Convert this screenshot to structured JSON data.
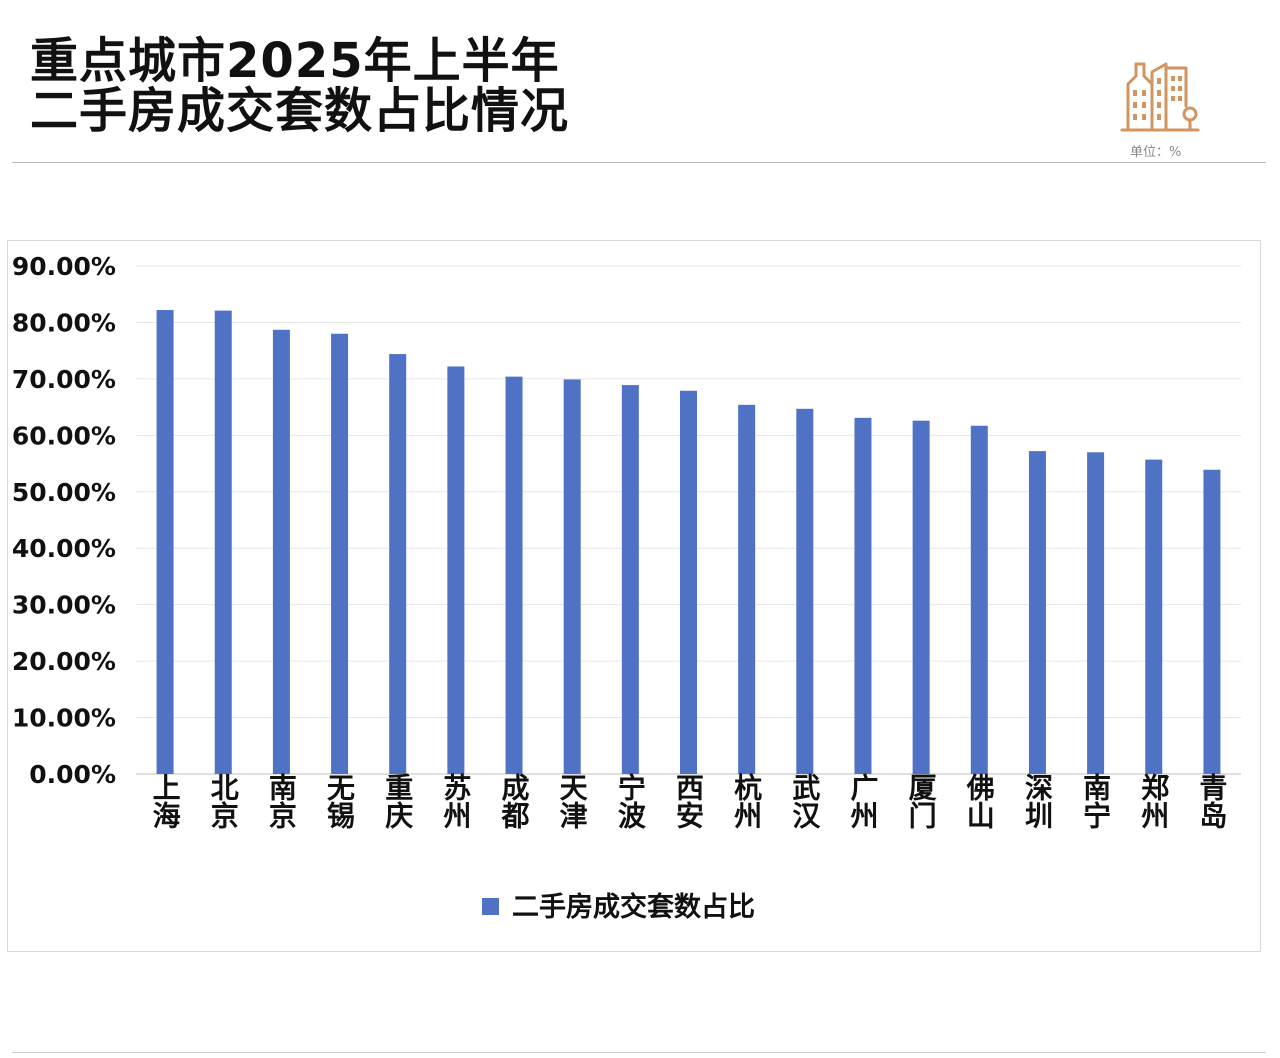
{
  "header": {
    "title_line1": "重点城市2025年上半年",
    "title_line2": "二手房成交套数占比情况",
    "unit_label": "单位：%",
    "logo_icon": "city-buildings-icon",
    "accent_color": "#d29560"
  },
  "chart_data": {
    "type": "bar",
    "title": "重点城市2025年上半年二手房成交套数占比情况",
    "xlabel": "",
    "ylabel": "",
    "ylim": [
      0,
      90
    ],
    "yticks": [
      "0.00%",
      "10.00%",
      "20.00%",
      "30.00%",
      "40.00%",
      "50.00%",
      "60.00%",
      "70.00%",
      "80.00%",
      "90.00%"
    ],
    "categories": [
      "上海",
      "北京",
      "南京",
      "无锡",
      "重庆",
      "苏州",
      "成都",
      "天津",
      "宁波",
      "西安",
      "杭州",
      "武汉",
      "广州",
      "厦门",
      "佛山",
      "深圳",
      "南宁",
      "郑州",
      "青岛"
    ],
    "series": [
      {
        "name": "二手房成交套数占比",
        "color": "#4f72c4",
        "values": [
          82.2,
          82.1,
          78.7,
          78.0,
          74.4,
          72.2,
          70.4,
          69.9,
          68.9,
          67.9,
          65.4,
          64.7,
          63.1,
          62.6,
          61.7,
          57.2,
          57.0,
          55.7,
          53.9
        ]
      }
    ],
    "legend": "bottom-center",
    "grid": true
  }
}
